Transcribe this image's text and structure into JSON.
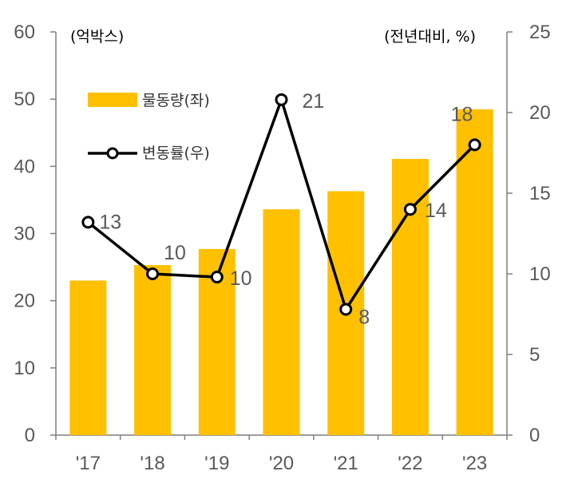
{
  "chart_data": {
    "type": "bar",
    "categories": [
      "'17",
      "'18",
      "'19",
      "'20",
      "'21",
      "'22",
      "'23"
    ],
    "series": [
      {
        "name": "물동량(좌)",
        "type": "bar",
        "axis": "left",
        "color": "#FFC000",
        "values": [
          23.0,
          25.3,
          27.7,
          33.6,
          36.3,
          41.1,
          48.5
        ]
      },
      {
        "name": "변동률(우)",
        "type": "line",
        "axis": "right",
        "color": "#000000",
        "values": [
          13.2,
          10.0,
          9.8,
          20.8,
          7.8,
          14.0,
          18.0
        ],
        "labels": [
          "13",
          "10",
          "10",
          "21",
          "8",
          "14",
          "18"
        ]
      }
    ],
    "left_axis": {
      "unit": "(억박스)",
      "ylim": [
        0,
        60
      ],
      "ticks": [
        "0",
        "10",
        "20",
        "30",
        "40",
        "50",
        "60"
      ]
    },
    "right_axis": {
      "unit": "(전년대비, %)",
      "ylim": [
        0,
        25
      ],
      "ticks": [
        "0",
        "5",
        "10",
        "15",
        "20",
        "25"
      ]
    },
    "grid": false,
    "legend_position": "top-left"
  }
}
